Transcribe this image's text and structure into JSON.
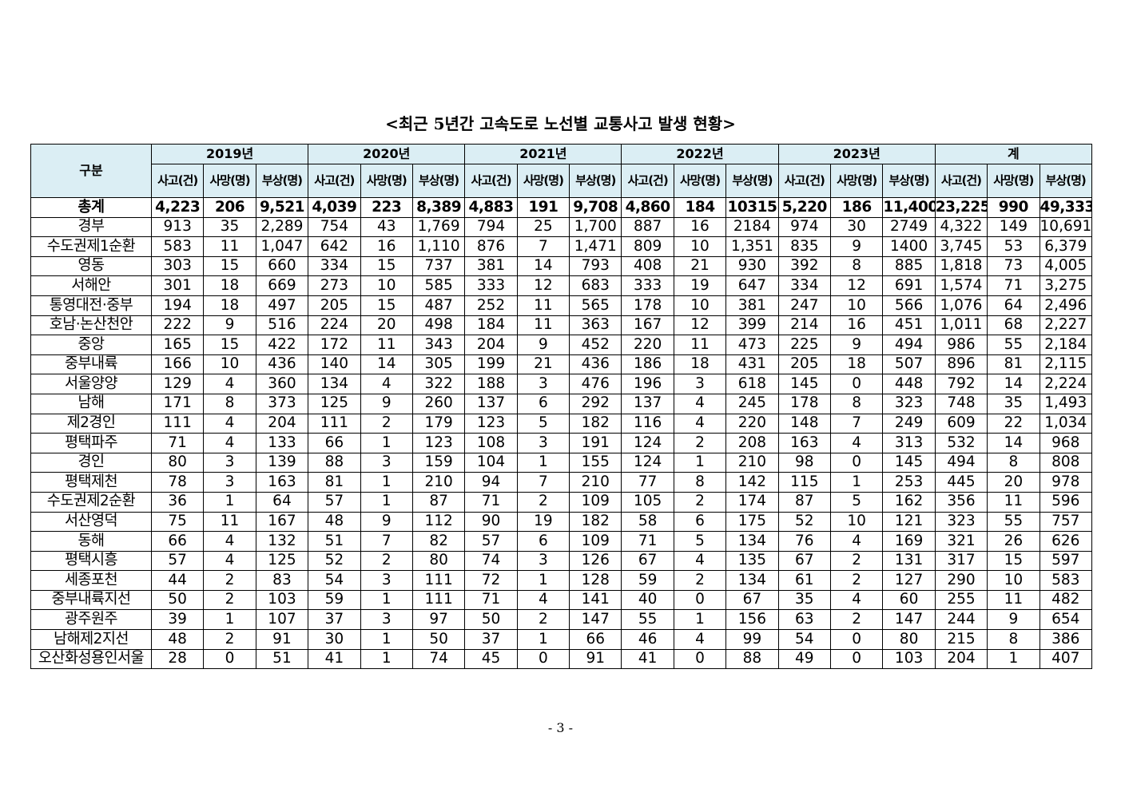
{
  "header": {
    "title": "<최근 5년간 고속도로 노선별 교통사고 발생 현황>"
  },
  "table": {
    "corner": "구분",
    "years": [
      "2019년",
      "2020년",
      "2021년",
      "2022년",
      "2023년",
      "계"
    ],
    "subheaders": [
      "사고(건)",
      "사망(명)",
      "부상(명)"
    ],
    "rows": [
      [
        "총계",
        "4,223",
        "206",
        "9,521",
        "4,039",
        "223",
        "8,389",
        "4,883",
        "191",
        "9,708",
        "4,860",
        "184",
        "10315",
        "5,220",
        "186",
        "11,400",
        "23,225",
        "990",
        "49,333"
      ],
      [
        "경부",
        "913",
        "35",
        "2,289",
        "754",
        "43",
        "1,769",
        "794",
        "25",
        "1,700",
        "887",
        "16",
        "2184",
        "974",
        "30",
        "2749",
        "4,322",
        "149",
        "10,691"
      ],
      [
        "수도권제1순환",
        "583",
        "11",
        "1,047",
        "642",
        "16",
        "1,110",
        "876",
        "7",
        "1,471",
        "809",
        "10",
        "1,351",
        "835",
        "9",
        "1400",
        "3,745",
        "53",
        "6,379"
      ],
      [
        "영동",
        "303",
        "15",
        "660",
        "334",
        "15",
        "737",
        "381",
        "14",
        "793",
        "408",
        "21",
        "930",
        "392",
        "8",
        "885",
        "1,818",
        "73",
        "4,005"
      ],
      [
        "서해안",
        "301",
        "18",
        "669",
        "273",
        "10",
        "585",
        "333",
        "12",
        "683",
        "333",
        "19",
        "647",
        "334",
        "12",
        "691",
        "1,574",
        "71",
        "3,275"
      ],
      [
        "통영대전·중부",
        "194",
        "18",
        "497",
        "205",
        "15",
        "487",
        "252",
        "11",
        "565",
        "178",
        "10",
        "381",
        "247",
        "10",
        "566",
        "1,076",
        "64",
        "2,496"
      ],
      [
        "호남·논산천안",
        "222",
        "9",
        "516",
        "224",
        "20",
        "498",
        "184",
        "11",
        "363",
        "167",
        "12",
        "399",
        "214",
        "16",
        "451",
        "1,011",
        "68",
        "2,227"
      ],
      [
        "중앙",
        "165",
        "15",
        "422",
        "172",
        "11",
        "343",
        "204",
        "9",
        "452",
        "220",
        "11",
        "473",
        "225",
        "9",
        "494",
        "986",
        "55",
        "2,184"
      ],
      [
        "중부내륙",
        "166",
        "10",
        "436",
        "140",
        "14",
        "305",
        "199",
        "21",
        "436",
        "186",
        "18",
        "431",
        "205",
        "18",
        "507",
        "896",
        "81",
        "2,115"
      ],
      [
        "서울양양",
        "129",
        "4",
        "360",
        "134",
        "4",
        "322",
        "188",
        "3",
        "476",
        "196",
        "3",
        "618",
        "145",
        "0",
        "448",
        "792",
        "14",
        "2,224"
      ],
      [
        "남해",
        "171",
        "8",
        "373",
        "125",
        "9",
        "260",
        "137",
        "6",
        "292",
        "137",
        "4",
        "245",
        "178",
        "8",
        "323",
        "748",
        "35",
        "1,493"
      ],
      [
        "제2경인",
        "111",
        "4",
        "204",
        "111",
        "2",
        "179",
        "123",
        "5",
        "182",
        "116",
        "4",
        "220",
        "148",
        "7",
        "249",
        "609",
        "22",
        "1,034"
      ],
      [
        "평택파주",
        "71",
        "4",
        "133",
        "66",
        "1",
        "123",
        "108",
        "3",
        "191",
        "124",
        "2",
        "208",
        "163",
        "4",
        "313",
        "532",
        "14",
        "968"
      ],
      [
        "경인",
        "80",
        "3",
        "139",
        "88",
        "3",
        "159",
        "104",
        "1",
        "155",
        "124",
        "1",
        "210",
        "98",
        "0",
        "145",
        "494",
        "8",
        "808"
      ],
      [
        "평택제천",
        "78",
        "3",
        "163",
        "81",
        "1",
        "210",
        "94",
        "7",
        "210",
        "77",
        "8",
        "142",
        "115",
        "1",
        "253",
        "445",
        "20",
        "978"
      ],
      [
        "수도권제2순환",
        "36",
        "1",
        "64",
        "57",
        "1",
        "87",
        "71",
        "2",
        "109",
        "105",
        "2",
        "174",
        "87",
        "5",
        "162",
        "356",
        "11",
        "596"
      ],
      [
        "서산영덕",
        "75",
        "11",
        "167",
        "48",
        "9",
        "112",
        "90",
        "19",
        "182",
        "58",
        "6",
        "175",
        "52",
        "10",
        "121",
        "323",
        "55",
        "757"
      ],
      [
        "동해",
        "66",
        "4",
        "132",
        "51",
        "7",
        "82",
        "57",
        "6",
        "109",
        "71",
        "5",
        "134",
        "76",
        "4",
        "169",
        "321",
        "26",
        "626"
      ],
      [
        "평택시흥",
        "57",
        "4",
        "125",
        "52",
        "2",
        "80",
        "74",
        "3",
        "126",
        "67",
        "4",
        "135",
        "67",
        "2",
        "131",
        "317",
        "15",
        "597"
      ],
      [
        "세종포천",
        "44",
        "2",
        "83",
        "54",
        "3",
        "111",
        "72",
        "1",
        "128",
        "59",
        "2",
        "134",
        "61",
        "2",
        "127",
        "290",
        "10",
        "583"
      ],
      [
        "중부내륙지선",
        "50",
        "2",
        "103",
        "59",
        "1",
        "111",
        "71",
        "4",
        "141",
        "40",
        "0",
        "67",
        "35",
        "4",
        "60",
        "255",
        "11",
        "482"
      ],
      [
        "광주원주",
        "39",
        "1",
        "107",
        "37",
        "3",
        "97",
        "50",
        "2",
        "147",
        "55",
        "1",
        "156",
        "63",
        "2",
        "147",
        "244",
        "9",
        "654"
      ],
      [
        "남해제2지선",
        "48",
        "2",
        "91",
        "30",
        "1",
        "50",
        "37",
        "1",
        "66",
        "46",
        "4",
        "99",
        "54",
        "0",
        "80",
        "215",
        "8",
        "386"
      ],
      [
        "오산화성용인서울",
        "28",
        "0",
        "51",
        "41",
        "1",
        "74",
        "45",
        "0",
        "91",
        "41",
        "0",
        "88",
        "49",
        "0",
        "103",
        "204",
        "1",
        "407"
      ]
    ]
  },
  "footer": {
    "page": "- 3 -"
  }
}
